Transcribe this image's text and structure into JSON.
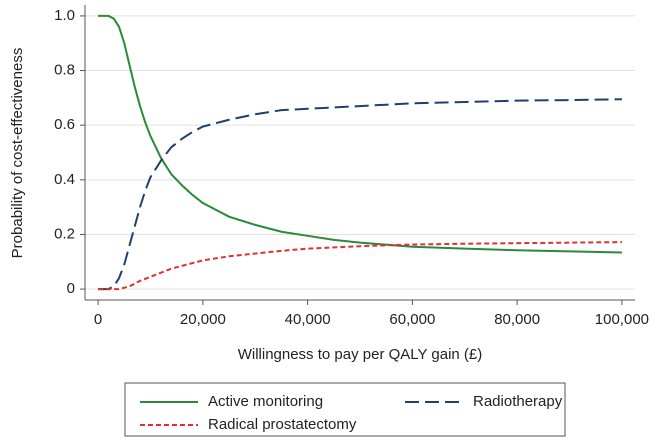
{
  "chart_data": {
    "type": "line",
    "xlabel": "Willingness to pay per QALY gain (£)",
    "ylabel": "Probability of cost-effectiveness",
    "xlim": [
      -2500,
      102500
    ],
    "ylim": [
      -0.04,
      1.04
    ],
    "xticks": [
      0,
      {
        "value": 20000,
        "label": "20,000"
      },
      {
        "value": 40000,
        "label": "40,000"
      },
      {
        "value": 60000,
        "label": "60,000"
      },
      {
        "value": 80000,
        "label": "80,000"
      },
      {
        "value": 100000,
        "label": "100,000"
      }
    ],
    "yticks": [
      0,
      0.2,
      0.4,
      0.6,
      0.8,
      {
        "value": 1,
        "label": "1.0"
      }
    ],
    "grid": true,
    "series": [
      {
        "name": "Active monitoring",
        "color": "#2a8a3a",
        "dash": "none",
        "x": [
          0,
          1000,
          2000,
          3000,
          4000,
          5000,
          6000,
          7000,
          8000,
          9000,
          10000,
          12000,
          14000,
          16000,
          18000,
          20000,
          25000,
          30000,
          35000,
          40000,
          45000,
          50000,
          60000,
          70000,
          80000,
          90000,
          100000
        ],
        "values": [
          1.0,
          1.0,
          1.0,
          0.99,
          0.96,
          0.9,
          0.82,
          0.74,
          0.67,
          0.61,
          0.56,
          0.48,
          0.42,
          0.38,
          0.345,
          0.315,
          0.265,
          0.235,
          0.21,
          0.195,
          0.18,
          0.17,
          0.155,
          0.148,
          0.142,
          0.138,
          0.134
        ]
      },
      {
        "name": "Radiotherapy",
        "color": "#1f3f6e",
        "dash": "14,6",
        "x": [
          0,
          2000,
          3000,
          4000,
          5000,
          6000,
          7000,
          8000,
          9000,
          10000,
          12000,
          14000,
          16000,
          18000,
          20000,
          25000,
          30000,
          35000,
          40000,
          50000,
          60000,
          70000,
          80000,
          90000,
          100000
        ],
        "values": [
          0,
          0,
          0.01,
          0.04,
          0.09,
          0.16,
          0.23,
          0.3,
          0.36,
          0.41,
          0.47,
          0.52,
          0.55,
          0.575,
          0.595,
          0.62,
          0.64,
          0.655,
          0.66,
          0.67,
          0.68,
          0.685,
          0.69,
          0.692,
          0.695
        ]
      },
      {
        "name": "Radical prostatectomy",
        "color": "#e03030",
        "dash": "5,3",
        "x": [
          0,
          4000,
          6000,
          8000,
          10000,
          12000,
          14000,
          16000,
          18000,
          20000,
          25000,
          30000,
          35000,
          40000,
          50000,
          60000,
          70000,
          80000,
          90000,
          100000
        ],
        "values": [
          0,
          0,
          0.01,
          0.03,
          0.045,
          0.06,
          0.075,
          0.085,
          0.095,
          0.105,
          0.12,
          0.13,
          0.14,
          0.148,
          0.157,
          0.163,
          0.166,
          0.168,
          0.17,
          0.172
        ]
      }
    ]
  }
}
